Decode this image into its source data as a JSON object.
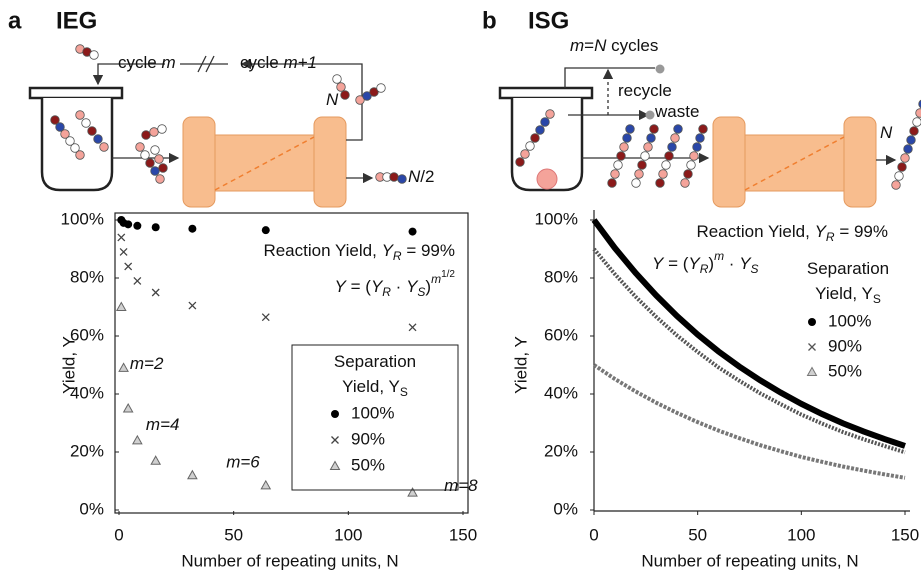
{
  "diagrams": [
    {
      "panel": "a",
      "title": "IEG",
      "labels": [
        [
          {
            "text": "cycle "
          },
          {
            "text": "m",
            "style": "italic"
          }
        ],
        [
          {
            "text": "cycle "
          },
          {
            "text": "m+1",
            "style": "italic"
          }
        ],
        [
          {
            "text": "N",
            "style": "italic"
          }
        ],
        [
          {
            "text": "N",
            "style": "italic"
          },
          {
            "text": "/2"
          }
        ]
      ]
    },
    {
      "panel": "b",
      "title": "ISG",
      "labels": [
        [
          {
            "text": "m",
            "style": "italic"
          },
          {
            "text": "="
          },
          {
            "text": "N",
            "style": "italic"
          },
          {
            "text": " cycles"
          }
        ],
        [
          {
            "text": "recycle"
          }
        ],
        [
          {
            "text": "waste"
          }
        ],
        [
          {
            "text": "N",
            "style": "italic"
          }
        ]
      ]
    }
  ],
  "chart_data": [
    {
      "type": "scatter",
      "frame": true,
      "legend_box": true,
      "xlabel": "Number of repeating units, N",
      "ylabel": "Yield, Y",
      "xlim": [
        0,
        150
      ],
      "xticks": [
        0,
        50,
        100,
        150
      ],
      "ylim": [
        0,
        100
      ],
      "yticks": [
        {
          "value": 0,
          "label": "0%"
        },
        {
          "value": 20,
          "label": "20%"
        },
        {
          "value": 40,
          "label": "40%"
        },
        {
          "value": 60,
          "label": "60%"
        },
        {
          "value": 80,
          "label": "80%"
        },
        {
          "value": 100,
          "label": "100%"
        }
      ],
      "x": [
        1,
        2,
        4,
        8,
        16,
        32,
        64,
        128
      ],
      "series": [
        {
          "name": "100%",
          "marker": "circle",
          "color": "#000000",
          "values": [
            100,
            99,
            98.5,
            98,
            97.5,
            97,
            96.5,
            96
          ]
        },
        {
          "name": "90%",
          "marker": "x",
          "color": "#444444",
          "values": [
            94,
            89,
            84,
            79,
            75,
            70.5,
            66.5,
            63
          ]
        },
        {
          "name": "50%",
          "marker": "triangle",
          "color": "#666666",
          "values": [
            70,
            49,
            35,
            24,
            17,
            12,
            8.5,
            6
          ]
        }
      ],
      "legend_title": [
        [
          {
            "text": "Separation"
          }
        ],
        [
          {
            "text": "Yield, Y"
          },
          {
            "text": "S",
            "style": "sub"
          }
        ]
      ],
      "annotations": [
        [
          {
            "text": "Reaction Yield, "
          },
          {
            "text": "Y",
            "style": "italic"
          },
          {
            "text": "R",
            "style": "sub-italic"
          },
          {
            "text": " = 99%"
          }
        ],
        [
          {
            "text": "Y",
            "style": "italic"
          },
          {
            "text": " = ("
          },
          {
            "text": "Y",
            "style": "italic"
          },
          {
            "text": "R",
            "style": "sub-italic"
          },
          {
            "text": " · "
          },
          {
            "text": "Y",
            "style": "italic"
          },
          {
            "text": "S",
            "style": "sub-italic"
          },
          {
            "text": ")"
          },
          {
            "text": "m",
            "style": "sup-italic"
          },
          {
            "text": "1/2",
            "style": "sup2"
          }
        ]
      ],
      "point_labels": [
        "m=2",
        "m=4",
        "m=6",
        "m=8"
      ]
    },
    {
      "type": "line",
      "frame": false,
      "legend_box": false,
      "xlabel": "Number of repeating units, N",
      "ylabel": "Yield, Y",
      "xlim": [
        0,
        150
      ],
      "xticks": [
        0,
        50,
        100,
        150
      ],
      "ylim": [
        0,
        100
      ],
      "yticks": [
        {
          "value": 0,
          "label": "0%"
        },
        {
          "value": 20,
          "label": "20%"
        },
        {
          "value": 40,
          "label": "40%"
        },
        {
          "value": 60,
          "label": "60%"
        },
        {
          "value": 80,
          "label": "80%"
        },
        {
          "value": 100,
          "label": "100%"
        }
      ],
      "x": [
        0,
        10,
        20,
        30,
        40,
        50,
        60,
        70,
        80,
        90,
        100,
        110,
        120,
        130,
        140,
        150
      ],
      "series": [
        {
          "name": "100%",
          "marker": "circle",
          "color": "#000000",
          "values": [
            100,
            90.4,
            81.8,
            74.0,
            66.9,
            60.5,
            54.7,
            49.5,
            44.8,
            40.5,
            36.6,
            33.1,
            29.9,
            27.1,
            24.5,
            22.1
          ]
        },
        {
          "name": "90%",
          "marker": "x",
          "color": "#555555",
          "values": [
            90,
            81.4,
            73.6,
            66.6,
            60.2,
            54.5,
            49.2,
            44.6,
            40.3,
            36.5,
            32.9,
            29.8,
            26.9,
            24.4,
            22.1,
            19.9
          ]
        },
        {
          "name": "50%",
          "marker": "triangle",
          "color": "#777777",
          "values": [
            50,
            45.2,
            40.9,
            37.0,
            33.5,
            30.3,
            27.4,
            24.8,
            22.4,
            20.3,
            18.3,
            16.6,
            15.0,
            13.6,
            12.3,
            11.1
          ]
        }
      ],
      "legend_title": [
        [
          {
            "text": "Separation"
          }
        ],
        [
          {
            "text": "Yield, Y"
          },
          {
            "text": "S",
            "style": "sub"
          }
        ]
      ],
      "annotations": [
        [
          {
            "text": "Reaction Yield, "
          },
          {
            "text": "Y",
            "style": "italic"
          },
          {
            "text": "R",
            "style": "sub-italic"
          },
          {
            "text": " = 99%"
          }
        ],
        [
          {
            "text": "Y",
            "style": "italic"
          },
          {
            "text": " = ("
          },
          {
            "text": "Y",
            "style": "italic"
          },
          {
            "text": "R",
            "style": "sub-italic"
          },
          {
            "text": ")"
          },
          {
            "text": "m",
            "style": "sup-italic"
          },
          {
            "text": " · "
          },
          {
            "text": "Y",
            "style": "italic"
          },
          {
            "text": "S",
            "style": "sub-italic"
          }
        ]
      ]
    }
  ]
}
